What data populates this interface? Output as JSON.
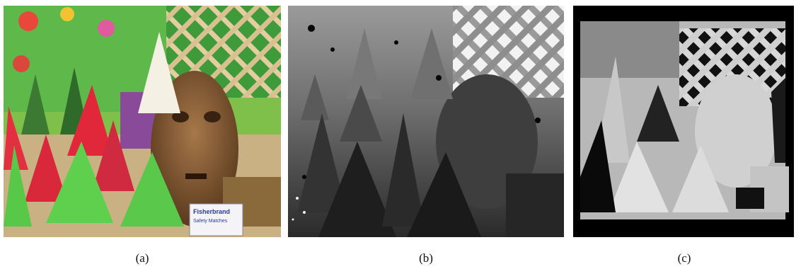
{
  "panels": [
    {
      "caption": "(a)",
      "label_text": [
        "Fisherbrand",
        "Safety Matches"
      ]
    },
    {
      "caption": "(b)"
    },
    {
      "caption": "(c)"
    }
  ]
}
